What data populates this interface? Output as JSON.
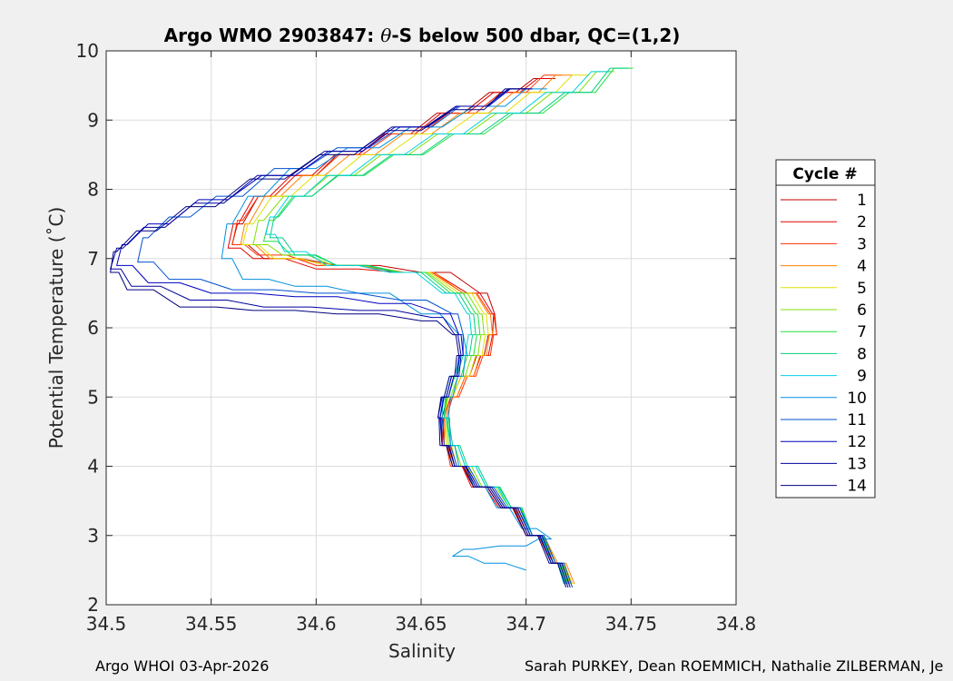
{
  "footer": {
    "left": "Argo WHOI 03-Apr-2026",
    "right": "Sarah PURKEY, Dean ROEMMICH, Nathalie ZILBERMAN, Je"
  },
  "colors": {
    "figure_background": "#f0f0f0",
    "axes_background": "#ffffff",
    "grid": "#dcdcdc"
  },
  "chart_data": {
    "type": "line",
    "title": "Argo WMO 2903847: θ-S below 500 dbar,  QC=(1,2)",
    "title_parts": {
      "prefix": "Argo WMO 2903847: ",
      "theta": "θ",
      "suffix": "-S below 500 dbar,  QC=(1,2)"
    },
    "xlabel": "Salinity",
    "ylabel": "Potential Temperature (˚C)",
    "xlim": [
      34.5,
      34.8
    ],
    "ylim": [
      2,
      10
    ],
    "xticks": [
      34.5,
      34.55,
      34.6,
      34.65,
      34.7,
      34.75,
      34.8
    ],
    "xtick_labels": [
      "34.5",
      "34.55",
      "34.6",
      "34.65",
      "34.7",
      "34.75",
      "34.8"
    ],
    "yticks": [
      2,
      3,
      4,
      5,
      6,
      7,
      8,
      9,
      10
    ],
    "ytick_labels": [
      "2",
      "3",
      "4",
      "5",
      "6",
      "7",
      "8",
      "9",
      "10"
    ],
    "grid": true,
    "legend": {
      "title": "Cycle #",
      "placement": "outside-right"
    },
    "series": [
      {
        "name": "1",
        "color": "#c00000",
        "x": [
          34.719,
          34.712,
          34.7,
          34.688,
          34.675,
          34.666,
          34.661,
          34.66,
          34.665,
          34.673,
          34.68,
          34.684,
          34.685,
          34.678,
          34.65,
          34.61,
          34.575,
          34.56,
          34.565,
          34.58,
          34.6,
          34.62,
          34.645,
          34.67,
          34.695,
          34.712
        ],
        "y": [
          2.3,
          2.6,
          3.0,
          3.4,
          3.7,
          4.0,
          4.3,
          4.7,
          5.0,
          5.3,
          5.6,
          5.9,
          6.2,
          6.5,
          6.8,
          6.9,
          7.0,
          7.2,
          7.5,
          7.9,
          8.2,
          8.5,
          8.8,
          9.1,
          9.4,
          9.6
        ]
      },
      {
        "name": "2",
        "color": "#e00000",
        "x": [
          34.721,
          34.713,
          34.7,
          34.687,
          34.674,
          34.665,
          34.66,
          34.661,
          34.667,
          34.675,
          34.682,
          34.686,
          34.684,
          34.672,
          34.64,
          34.6,
          34.57,
          34.558,
          34.563,
          34.578,
          34.598,
          34.62,
          34.647,
          34.672,
          34.697,
          34.714
        ],
        "y": [
          2.3,
          2.6,
          3.0,
          3.4,
          3.7,
          4.0,
          4.3,
          4.7,
          5.0,
          5.3,
          5.6,
          5.9,
          6.2,
          6.5,
          6.8,
          6.85,
          7.0,
          7.15,
          7.5,
          7.9,
          8.2,
          8.5,
          8.8,
          9.1,
          9.4,
          9.6
        ]
      },
      {
        "name": "3",
        "color": "#ff3000",
        "x": [
          34.722,
          34.714,
          34.701,
          34.688,
          34.675,
          34.664,
          34.66,
          34.662,
          34.668,
          34.676,
          34.683,
          34.686,
          34.683,
          34.67,
          34.64,
          34.6,
          34.572,
          34.56,
          34.565,
          34.58,
          34.6,
          34.622,
          34.65,
          34.676,
          34.7,
          34.717
        ],
        "y": [
          2.3,
          2.6,
          3.0,
          3.4,
          3.7,
          4.0,
          4.3,
          4.7,
          5.0,
          5.3,
          5.6,
          5.9,
          6.2,
          6.5,
          6.8,
          6.9,
          7.05,
          7.2,
          7.55,
          7.9,
          8.2,
          8.5,
          8.8,
          9.1,
          9.4,
          9.65
        ]
      },
      {
        "name": "4",
        "color": "#ff8000",
        "x": [
          34.723,
          34.715,
          34.702,
          34.689,
          34.676,
          34.665,
          34.661,
          34.662,
          34.667,
          34.675,
          34.681,
          34.684,
          34.682,
          34.67,
          34.642,
          34.605,
          34.578,
          34.564,
          34.568,
          34.583,
          34.604,
          34.628,
          34.655,
          34.682,
          34.706,
          34.722
        ],
        "y": [
          2.3,
          2.6,
          3.0,
          3.4,
          3.7,
          4.0,
          4.3,
          4.7,
          5.0,
          5.3,
          5.6,
          5.9,
          6.2,
          6.5,
          6.8,
          6.9,
          7.0,
          7.2,
          7.5,
          7.9,
          8.2,
          8.5,
          8.8,
          9.1,
          9.4,
          9.65
        ]
      },
      {
        "name": "5",
        "color": "#e0e000",
        "x": [
          34.722,
          34.714,
          34.702,
          34.69,
          34.677,
          34.667,
          34.662,
          34.661,
          34.665,
          34.673,
          34.679,
          34.682,
          34.68,
          34.668,
          34.64,
          34.605,
          34.58,
          34.565,
          34.57,
          34.588,
          34.61,
          34.634,
          34.662,
          34.69,
          34.714,
          34.73
        ],
        "y": [
          2.3,
          2.6,
          3.0,
          3.4,
          3.7,
          4.0,
          4.3,
          4.7,
          5.0,
          5.3,
          5.6,
          5.9,
          6.2,
          6.5,
          6.8,
          6.9,
          7.0,
          7.2,
          7.5,
          7.9,
          8.2,
          8.5,
          8.8,
          9.1,
          9.4,
          9.65
        ]
      },
      {
        "name": "6",
        "color": "#80e000",
        "x": [
          34.721,
          34.714,
          34.703,
          34.692,
          34.679,
          34.669,
          34.663,
          34.661,
          34.664,
          34.671,
          34.677,
          34.68,
          34.678,
          34.666,
          34.64,
          34.608,
          34.584,
          34.57,
          34.575,
          34.594,
          34.618,
          34.644,
          34.672,
          34.7,
          34.725,
          34.742
        ],
        "y": [
          2.3,
          2.6,
          3.0,
          3.4,
          3.7,
          4.0,
          4.3,
          4.7,
          5.0,
          5.3,
          5.6,
          5.9,
          6.2,
          6.5,
          6.8,
          6.9,
          7.05,
          7.2,
          7.55,
          7.9,
          8.2,
          8.5,
          8.8,
          9.1,
          9.4,
          9.7
        ]
      },
      {
        "name": "7",
        "color": "#20e040",
        "x": [
          34.72,
          34.713,
          34.703,
          34.693,
          34.681,
          34.671,
          34.664,
          34.661,
          34.663,
          34.669,
          34.675,
          34.678,
          34.676,
          34.664,
          34.64,
          34.61,
          34.588,
          34.575,
          34.58,
          34.598,
          34.623,
          34.651,
          34.68,
          34.708,
          34.733,
          34.751
        ],
        "y": [
          2.3,
          2.6,
          3.0,
          3.4,
          3.7,
          4.0,
          4.3,
          4.7,
          5.0,
          5.3,
          5.6,
          5.9,
          6.2,
          6.5,
          6.8,
          6.9,
          7.05,
          7.25,
          7.55,
          7.9,
          8.2,
          8.5,
          8.8,
          9.1,
          9.4,
          9.75
        ]
      },
      {
        "name": "8",
        "color": "#00d080",
        "x": [
          34.719,
          34.712,
          34.703,
          34.693,
          34.682,
          34.672,
          34.665,
          34.661,
          34.662,
          34.667,
          34.673,
          34.676,
          34.674,
          34.662,
          34.638,
          34.61,
          34.59,
          34.578,
          34.582,
          34.598,
          34.622,
          34.65,
          34.678,
          34.706,
          34.731,
          34.749
        ],
        "y": [
          2.3,
          2.6,
          3.0,
          3.4,
          3.7,
          4.0,
          4.3,
          4.7,
          5.0,
          5.3,
          5.6,
          5.9,
          6.2,
          6.5,
          6.8,
          6.9,
          7.05,
          7.3,
          7.6,
          7.9,
          8.2,
          8.5,
          8.8,
          9.1,
          9.4,
          9.75
        ]
      },
      {
        "name": "9",
        "color": "#00d0e0",
        "x": [
          34.718,
          34.712,
          34.702,
          34.692,
          34.681,
          34.671,
          34.664,
          34.66,
          34.661,
          34.666,
          34.671,
          34.674,
          34.672,
          34.66,
          34.635,
          34.605,
          34.585,
          34.576,
          34.58,
          34.594,
          34.616,
          34.642,
          34.67,
          34.697,
          34.722,
          34.74
        ],
        "y": [
          2.3,
          2.6,
          3.0,
          3.4,
          3.7,
          4.0,
          4.3,
          4.7,
          5.0,
          5.3,
          5.6,
          5.9,
          6.2,
          6.5,
          6.8,
          6.9,
          7.1,
          7.35,
          7.6,
          7.9,
          8.2,
          8.5,
          8.8,
          9.1,
          9.4,
          9.7
        ]
      },
      {
        "name": "10",
        "color": "#0090e0",
        "x": [
          34.7,
          34.68,
          34.665,
          34.675,
          34.7,
          34.712,
          34.698,
          34.686,
          34.675,
          34.668,
          34.664,
          34.663,
          34.665,
          34.67,
          34.672,
          34.668,
          34.65,
          34.62,
          34.59,
          34.565,
          34.555,
          34.56,
          34.575,
          34.6,
          34.63,
          34.66,
          34.69,
          34.71
        ],
        "y": [
          2.5,
          2.6,
          2.7,
          2.8,
          2.85,
          2.95,
          3.1,
          3.4,
          3.7,
          4.0,
          4.3,
          4.7,
          5.0,
          5.3,
          5.6,
          5.9,
          6.2,
          6.5,
          6.6,
          6.7,
          7.0,
          7.5,
          7.9,
          8.3,
          8.6,
          8.9,
          9.2,
          9.45
        ]
      },
      {
        "name": "11",
        "color": "#0050d0",
        "x": [
          34.722,
          34.714,
          34.703,
          34.691,
          34.678,
          34.667,
          34.661,
          34.659,
          34.662,
          34.667,
          34.67,
          34.67,
          34.665,
          34.64,
          34.6,
          34.56,
          34.53,
          34.515,
          34.52,
          34.54,
          34.565,
          34.595,
          34.625,
          34.655,
          34.682,
          34.702
        ],
        "y": [
          2.25,
          2.6,
          3.0,
          3.4,
          3.7,
          4.0,
          4.3,
          4.7,
          5.0,
          5.3,
          5.6,
          5.9,
          6.2,
          6.4,
          6.5,
          6.55,
          6.7,
          6.95,
          7.3,
          7.6,
          7.9,
          8.3,
          8.6,
          8.9,
          9.2,
          9.45
        ]
      },
      {
        "name": "12",
        "color": "#0000c0",
        "x": [
          34.721,
          34.713,
          34.702,
          34.69,
          34.677,
          34.666,
          34.66,
          34.659,
          34.663,
          34.668,
          34.67,
          34.668,
          34.66,
          34.63,
          34.59,
          34.55,
          34.52,
          34.505,
          34.51,
          34.53,
          34.558,
          34.59,
          34.622,
          34.653,
          34.682,
          34.703
        ],
        "y": [
          2.25,
          2.6,
          3.0,
          3.4,
          3.7,
          4.0,
          4.3,
          4.7,
          5.0,
          5.3,
          5.6,
          5.9,
          6.2,
          6.35,
          6.45,
          6.5,
          6.65,
          6.9,
          7.2,
          7.5,
          7.85,
          8.2,
          8.55,
          8.9,
          9.2,
          9.45
        ]
      },
      {
        "name": "13",
        "color": "#0000a0",
        "x": [
          34.72,
          34.712,
          34.701,
          34.689,
          34.676,
          34.666,
          34.66,
          34.658,
          34.662,
          34.667,
          34.669,
          34.666,
          34.655,
          34.62,
          34.575,
          34.54,
          34.512,
          34.502,
          34.508,
          34.528,
          34.556,
          34.588,
          34.62,
          34.652,
          34.681,
          34.702
        ],
        "y": [
          2.25,
          2.6,
          3.0,
          3.4,
          3.7,
          4.0,
          4.3,
          4.7,
          5.0,
          5.3,
          5.6,
          5.9,
          6.15,
          6.25,
          6.3,
          6.4,
          6.6,
          6.85,
          7.15,
          7.45,
          7.8,
          8.2,
          8.55,
          8.9,
          9.2,
          9.45
        ]
      },
      {
        "name": "14",
        "color": "#000080",
        "x": [
          34.719,
          34.711,
          34.7,
          34.688,
          34.675,
          34.665,
          34.659,
          34.658,
          34.661,
          34.666,
          34.668,
          34.665,
          34.65,
          34.61,
          34.57,
          34.535,
          34.51,
          34.502,
          34.505,
          34.524,
          34.552,
          34.585,
          34.618,
          34.65,
          34.68,
          34.7
        ],
        "y": [
          2.25,
          2.6,
          3.0,
          3.4,
          3.7,
          4.0,
          4.3,
          4.7,
          5.0,
          5.3,
          5.6,
          5.9,
          6.1,
          6.2,
          6.25,
          6.3,
          6.55,
          6.8,
          7.1,
          7.4,
          7.75,
          8.15,
          8.5,
          8.85,
          9.15,
          9.45
        ]
      }
    ]
  }
}
